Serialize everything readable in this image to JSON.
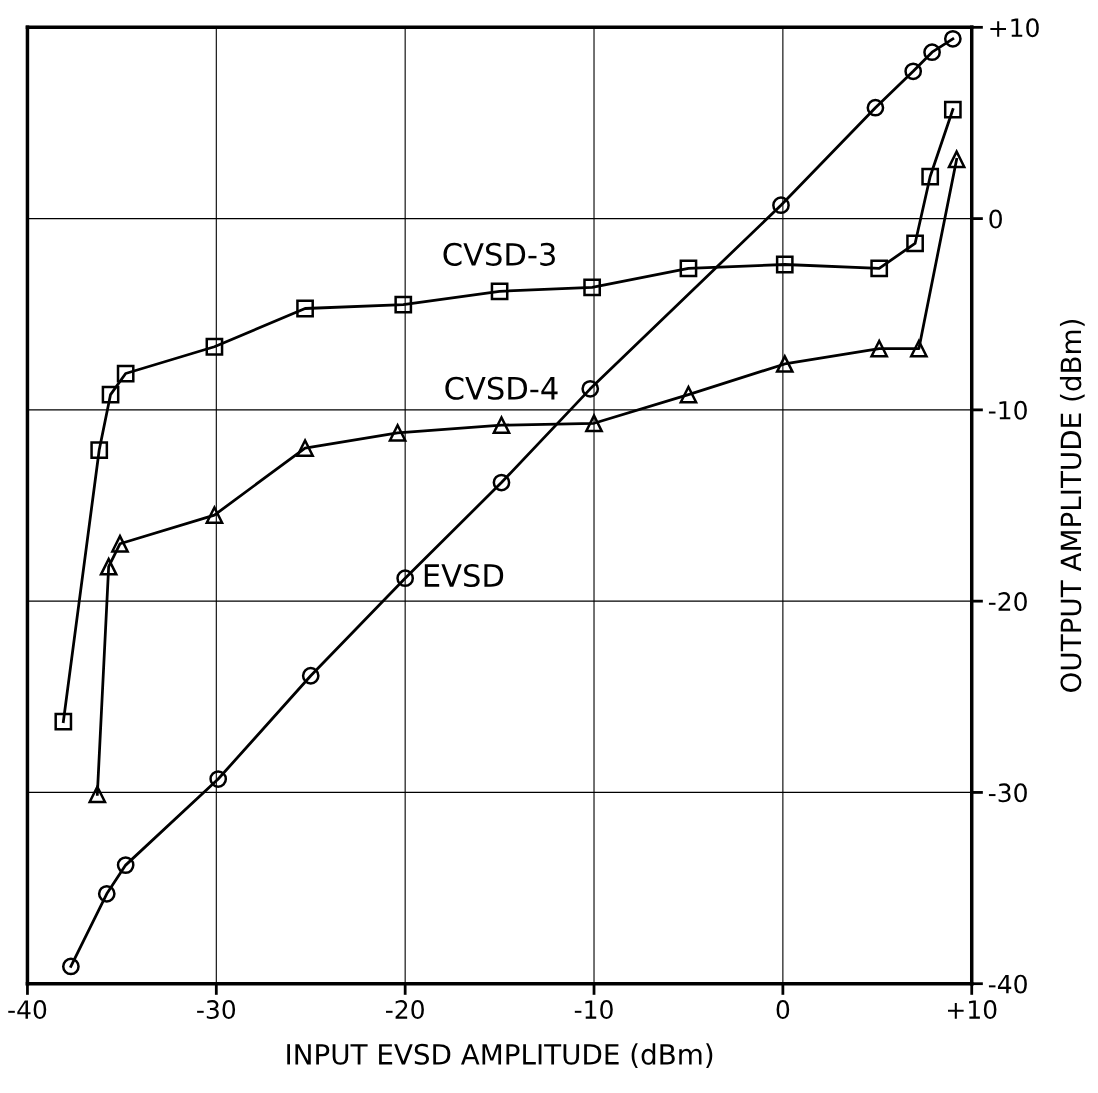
{
  "chart_data": {
    "type": "line",
    "xlabel": "INPUT EVSD AMPLITUDE (dBm)",
    "ylabel": "OUTPUT AMPLITUDE (dBm)",
    "xlim": [
      -40,
      10
    ],
    "xticks": [
      -40,
      -30,
      -20,
      -10,
      0,
      {
        "value": 10,
        "label": "+10"
      }
    ],
    "ylim": [
      -40,
      10
    ],
    "yticks": [
      -40,
      -30,
      -20,
      -10,
      0,
      {
        "value": 10,
        "label": "+10"
      }
    ],
    "grid": true,
    "line_style": "solid",
    "series": [
      {
        "name": "EVSD",
        "color": "#000000",
        "marker": "circle",
        "x": [
          -37.7,
          -35.8,
          -34.8,
          -29.9,
          -25.0,
          -20.0,
          -14.9,
          -10.2,
          -0.1,
          4.9,
          6.9,
          7.9,
          9.0
        ],
        "values": [
          -39.1,
          -35.3,
          -33.8,
          -29.3,
          -23.9,
          -18.8,
          -13.8,
          -8.9,
          0.7,
          5.8,
          7.7,
          8.7,
          9.4
        ]
      },
      {
        "name": "CVSD-3",
        "color": "#000000",
        "marker": "square",
        "x": [
          -38.1,
          -36.2,
          -35.6,
          -34.8,
          -30.1,
          -25.3,
          -20.1,
          -15.0,
          -10.1,
          -5.0,
          0.1,
          5.1,
          7.0,
          7.8,
          9.0
        ],
        "values": [
          -26.3,
          -12.1,
          -9.2,
          -8.1,
          -6.7,
          -4.7,
          -4.5,
          -3.8,
          -3.6,
          -2.6,
          -2.4,
          -2.6,
          -1.3,
          2.2,
          5.7
        ]
      },
      {
        "name": "CVSD-4",
        "color": "#000000",
        "marker": "triangle",
        "x": [
          -36.3,
          -35.7,
          -35.1,
          -30.1,
          -25.3,
          -20.4,
          -14.9,
          -10.0,
          -5.0,
          0.1,
          5.1,
          7.2,
          9.2
        ],
        "values": [
          -30.1,
          -18.2,
          -17.0,
          -15.5,
          -12.0,
          -11.2,
          -10.8,
          -10.7,
          -9.2,
          -7.6,
          -6.8,
          -6.8,
          3.1
        ]
      }
    ]
  }
}
